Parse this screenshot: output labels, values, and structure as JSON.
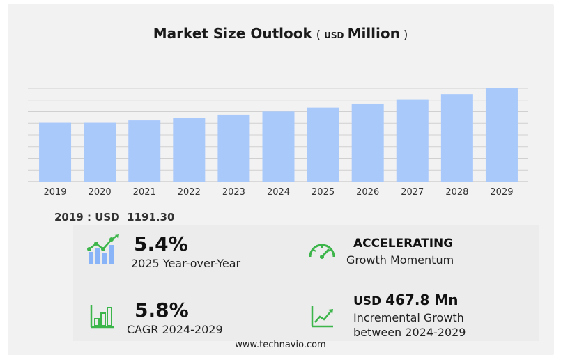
{
  "title": {
    "main": "Market Size Outlook",
    "open_paren": "(",
    "unit": "USD",
    "scale": "Million",
    "close_paren": ")"
  },
  "colors": {
    "bar": "#a9c9fb",
    "gridline": "#d0d0d0",
    "icon_green": "#3cb54a",
    "icon_blue": "#8ab4f8"
  },
  "chart_data": {
    "type": "bar",
    "title": "Market Size Outlook (USD Million)",
    "categories": [
      "2019",
      "2020",
      "2021",
      "2022",
      "2023",
      "2024",
      "2025",
      "2026",
      "2027",
      "2028",
      "2029"
    ],
    "values": [
      1191.3,
      1191,
      1240,
      1290,
      1355,
      1420,
      1500,
      1580,
      1670,
      1775,
      1890
    ],
    "ylim": [
      0,
      1890
    ],
    "grid": true,
    "legend": "none"
  },
  "base_year": {
    "year": "2019",
    "separator": ":",
    "currency": "USD",
    "value": "1191.30"
  },
  "stats": {
    "yoy": {
      "value": "5.4%",
      "label": "2025 Year-over-Year",
      "icon": "growth-chart-icon"
    },
    "momentum": {
      "value": "ACCELERATING",
      "label": "Growth Momentum",
      "icon": "speedometer-icon"
    },
    "cagr": {
      "value": "5.8%",
      "label": "CAGR 2024-2029",
      "icon": "bar-chart-icon"
    },
    "incremental": {
      "currency": "USD",
      "value": "467.8 Mn",
      "label_line1": "Incremental Growth",
      "label_line2": "between 2024-2029",
      "icon": "trend-line-icon"
    }
  },
  "footer": {
    "website": "www.technavio.com"
  }
}
